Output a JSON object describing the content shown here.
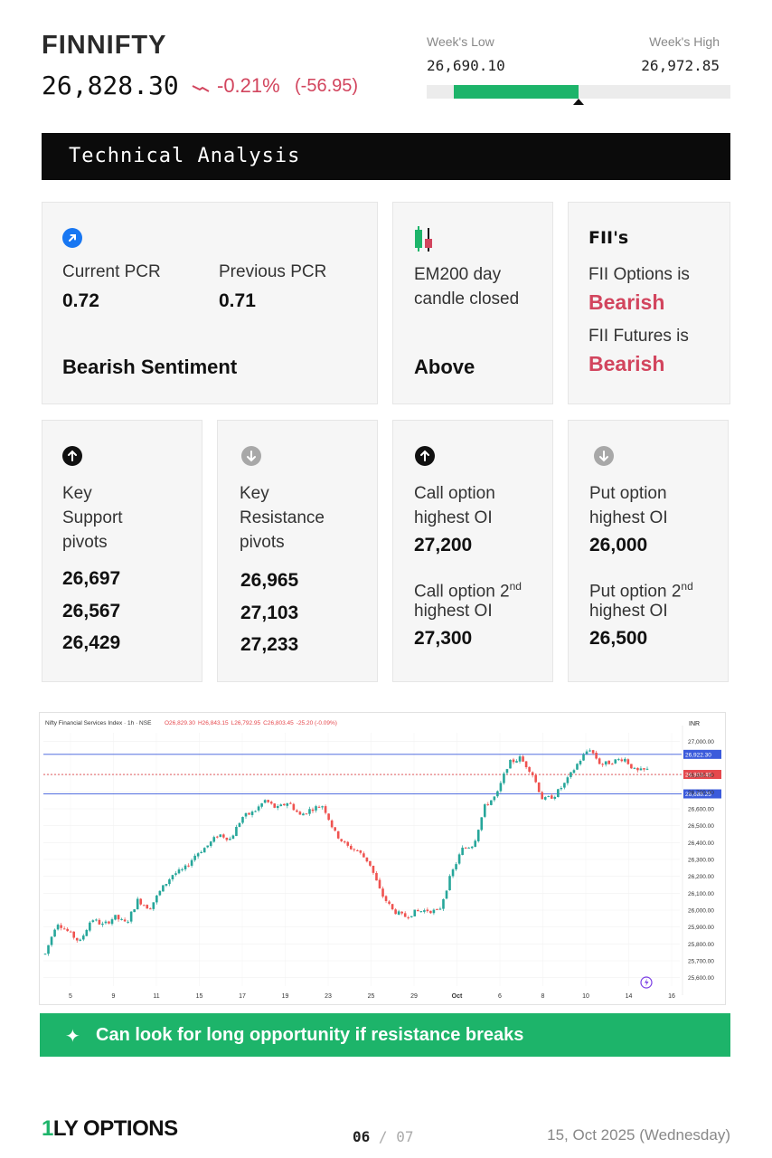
{
  "header": {
    "ticker": "FINNIFTY",
    "price": "26,828.30",
    "change_pct": "-0.21%",
    "change_abs": "(-56.95)",
    "week_low_label": "Week's Low",
    "week_high_label": "Week's High",
    "week_low": "26,690.10",
    "week_high": "26,972.85",
    "range_fill_start_fraction": 0.09,
    "range_fill_end_fraction": 0.5,
    "range_marker_fraction": 0.5
  },
  "banner": {
    "title": "Technical Analysis"
  },
  "pcr_card": {
    "icon": "arrow-up-right-icon",
    "current_label": "Current PCR",
    "current_value": "0.72",
    "previous_label": "Previous PCR",
    "previous_value": "0.71",
    "sentiment": "Bearish Sentiment"
  },
  "ema_card": {
    "icon": "candlestick-icon",
    "label_line1": "EM200 day",
    "label_line2": "candle closed",
    "value": "Above"
  },
  "fii_card": {
    "title": "FII's",
    "options_label": "FII Options is",
    "options_value": "Bearish",
    "futures_label": "FII Futures is",
    "futures_value": "Bearish"
  },
  "support_card": {
    "icon": "arrow-up-icon",
    "label_lines": [
      "Key",
      "Support",
      "pivots"
    ],
    "values": [
      "26,697",
      "26,567",
      "26,429"
    ]
  },
  "resistance_card": {
    "icon": "arrow-down-icon",
    "label_lines": [
      "Key",
      "Resistance",
      "pivots"
    ],
    "values": [
      "26,965",
      "27,103",
      "27,233"
    ]
  },
  "call_card": {
    "icon": "arrow-up-icon",
    "label1_lines": [
      "Call option",
      "highest OI"
    ],
    "value1": "27,200",
    "label2_main": "Call option 2",
    "label2_sup": "nd",
    "label2_line2": "highest OI",
    "value2": "27,300"
  },
  "put_card": {
    "icon": "arrow-down-icon",
    "label1_lines": [
      "Put option",
      "highest OI"
    ],
    "value1": "26,000",
    "label2_main": "Put option 2",
    "label2_sup": "nd",
    "label2_line2": "highest OI",
    "value2": "26,500"
  },
  "chart_data": {
    "type": "candlestick",
    "header_text": "Nifty Financial Services Index · 1h · NSE",
    "ohlc_text": {
      "o": "O26,829.30",
      "h": "H26,843.15",
      "l": "L26,792.95",
      "c": "C26,803.45",
      "chg": "-25.20 (-0.09%)"
    },
    "currency": "INR",
    "ylim": [
      25550,
      27050
    ],
    "y_ticks": [
      "27,000.00",
      "26,800.00",
      "26,700.00",
      "26,600.00",
      "26,500.00",
      "26,400.00",
      "26,300.00",
      "26,200.00",
      "26,100.00",
      "26,000.00",
      "25,900.00",
      "25,800.00",
      "25,700.00",
      "25,600.00"
    ],
    "x_ticks": [
      "5",
      "9",
      "11",
      "15",
      "17",
      "19",
      "23",
      "25",
      "29",
      "Oct",
      "6",
      "8",
      "10",
      "14",
      "16"
    ],
    "hlines": [
      {
        "value": 26922.3,
        "label": "26,922.30",
        "color": "#3b5bdb"
      },
      {
        "value": 26803.45,
        "label": "26,803.45",
        "color": "#e5484d"
      },
      {
        "value": 26688.25,
        "label": "26,688.25",
        "color": "#3b5bdb"
      }
    ],
    "path_closes": [
      25740,
      25930,
      25870,
      25810,
      25950,
      25910,
      25960,
      25920,
      26060,
      26010,
      26120,
      26210,
      26240,
      26330,
      26380,
      26450,
      26420,
      26550,
      26580,
      26650,
      26600,
      26640,
      26560,
      26600,
      26620,
      26460,
      26380,
      26350,
      26280,
      26100,
      26000,
      25960,
      25990,
      26000,
      25990,
      26200,
      26360,
      26390,
      26620,
      26680,
      26870,
      26900,
      26820,
      26650,
      26680,
      26760,
      26870,
      26960,
      26860,
      26880,
      26900,
      26820,
      26830
    ],
    "up_color": "#26a69a",
    "down_color": "#ef5350"
  },
  "tip": {
    "icon": "sparkle-icon",
    "text": "Can look for long opportunity if resistance breaks"
  },
  "footer": {
    "logo_one": "1",
    "logo_rest": "LY OPTIONS",
    "page_current": "06",
    "page_sep": "/",
    "page_total": "07",
    "date": "15, Oct 2025 (Wednesday)"
  }
}
